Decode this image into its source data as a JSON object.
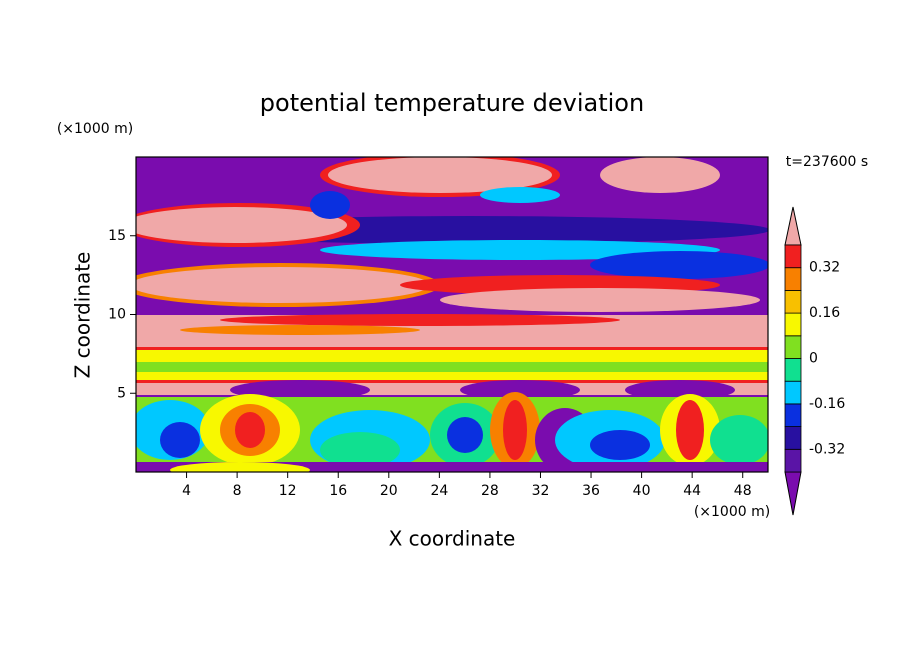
{
  "chart_data": {
    "type": "contour",
    "title": "potential temperature deviation",
    "x_label": "X coordinate",
    "y_label": "Z coordinate",
    "x_unit": "(×1000 m)",
    "y_unit": "(×1000 m)",
    "time_label": "t=237600 s",
    "xlim": [
      0,
      50
    ],
    "xticks": [
      4,
      8,
      12,
      16,
      20,
      24,
      28,
      32,
      36,
      40,
      44,
      48
    ],
    "ylim": [
      0,
      20
    ],
    "yticks": [
      5,
      10,
      15
    ],
    "clim": [
      -0.4,
      0.4
    ],
    "colorbar_ticks": [
      -0.32,
      -0.16,
      0,
      0.16,
      0.32
    ],
    "colors": [
      "#7a0cae",
      "#5a14a6",
      "#2810a0",
      "#0a30e0",
      "#00c8ff",
      "#10e090",
      "#80e020",
      "#f8f800",
      "#f8c000",
      "#f88000",
      "#f02020",
      "#f0a8a8"
    ]
  }
}
